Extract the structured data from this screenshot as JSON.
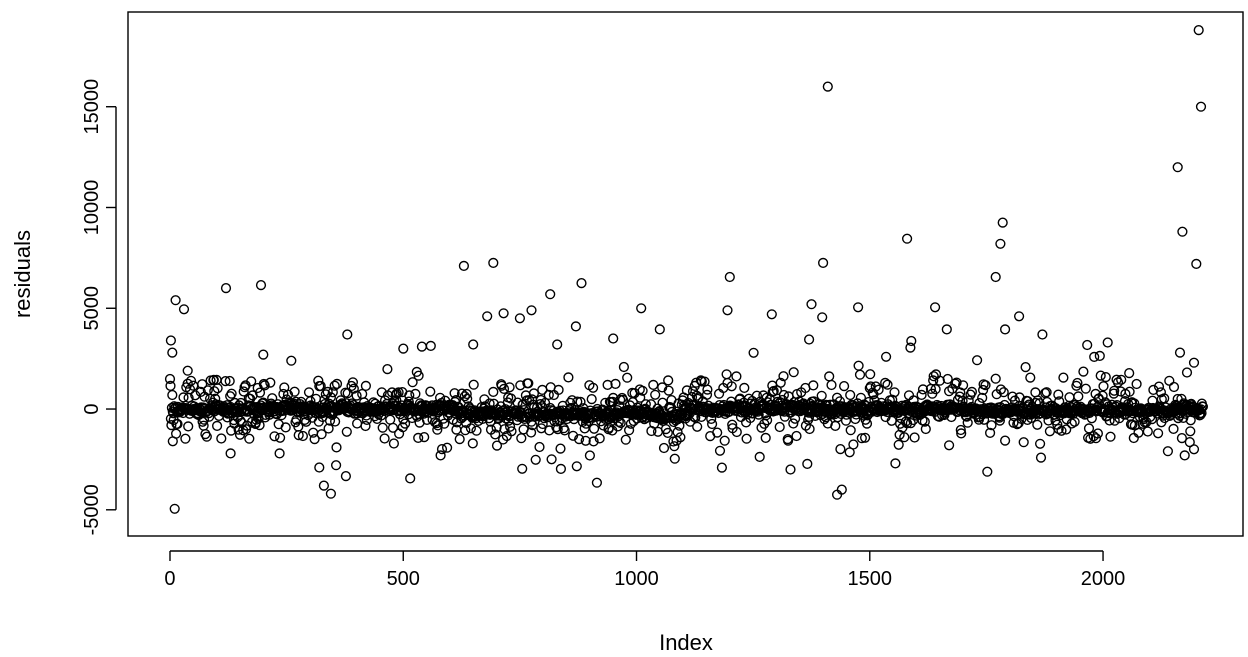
{
  "chart_data": {
    "type": "scatter",
    "title": "",
    "xlabel": "Index",
    "ylabel": "residuals",
    "xlim": [
      -90,
      2300
    ],
    "ylim": [
      -6300,
      19700
    ],
    "x_ticks": [
      0,
      500,
      1000,
      1500,
      2000
    ],
    "y_ticks": [
      -5000,
      0,
      5000,
      10000,
      15000
    ],
    "grid": false,
    "legend": "none",
    "point_count": 2215,
    "point_color": "#000000",
    "outliers": [
      {
        "x": 2,
        "y": 3400
      },
      {
        "x": 5,
        "y": 2800
      },
      {
        "x": 6,
        "y": -1600
      },
      {
        "x": 12,
        "y": 5400
      },
      {
        "x": 10,
        "y": -4950
      },
      {
        "x": 30,
        "y": 4950
      },
      {
        "x": 38,
        "y": 1900
      },
      {
        "x": 45,
        "y": 1400
      },
      {
        "x": 120,
        "y": 6000
      },
      {
        "x": 130,
        "y": -2200
      },
      {
        "x": 195,
        "y": 6150
      },
      {
        "x": 200,
        "y": 2700
      },
      {
        "x": 235,
        "y": -2200
      },
      {
        "x": 260,
        "y": 2400
      },
      {
        "x": 320,
        "y": -2900
      },
      {
        "x": 330,
        "y": -3800
      },
      {
        "x": 345,
        "y": -4200
      },
      {
        "x": 380,
        "y": 3700
      },
      {
        "x": 500,
        "y": 3000
      },
      {
        "x": 540,
        "y": 3100
      },
      {
        "x": 580,
        "y": -2300
      },
      {
        "x": 630,
        "y": 7100
      },
      {
        "x": 650,
        "y": 3200
      },
      {
        "x": 680,
        "y": 4600
      },
      {
        "x": 693,
        "y": 7250
      },
      {
        "x": 715,
        "y": 4750
      },
      {
        "x": 750,
        "y": 4500
      },
      {
        "x": 775,
        "y": 4900
      },
      {
        "x": 815,
        "y": 5700
      },
      {
        "x": 830,
        "y": 3200
      },
      {
        "x": 870,
        "y": 4100
      },
      {
        "x": 882,
        "y": 6250
      },
      {
        "x": 950,
        "y": 3500
      },
      {
        "x": 1010,
        "y": 5000
      },
      {
        "x": 1050,
        "y": 3950
      },
      {
        "x": 1200,
        "y": 6550
      },
      {
        "x": 1195,
        "y": 4900
      },
      {
        "x": 1290,
        "y": 4700
      },
      {
        "x": 1330,
        "y": -3000
      },
      {
        "x": 1370,
        "y": 3450
      },
      {
        "x": 1375,
        "y": 5200
      },
      {
        "x": 1400,
        "y": 7250
      },
      {
        "x": 1398,
        "y": 4550
      },
      {
        "x": 1410,
        "y": 16000
      },
      {
        "x": 1430,
        "y": -4250
      },
      {
        "x": 1440,
        "y": -4000
      },
      {
        "x": 1475,
        "y": 5050
      },
      {
        "x": 1555,
        "y": -2700
      },
      {
        "x": 1580,
        "y": 8450
      },
      {
        "x": 1640,
        "y": 5050
      },
      {
        "x": 1665,
        "y": 3950
      },
      {
        "x": 1670,
        "y": -1800
      },
      {
        "x": 1770,
        "y": 6550
      },
      {
        "x": 1780,
        "y": 8200
      },
      {
        "x": 1785,
        "y": 9250
      },
      {
        "x": 1790,
        "y": 3950
      },
      {
        "x": 1820,
        "y": 4600
      },
      {
        "x": 1870,
        "y": 3700
      },
      {
        "x": 2010,
        "y": 3300
      },
      {
        "x": 2160,
        "y": 12000
      },
      {
        "x": 2170,
        "y": 8800
      },
      {
        "x": 2165,
        "y": 2800
      },
      {
        "x": 2175,
        "y": -2300
      },
      {
        "x": 2195,
        "y": -2000
      },
      {
        "x": 2200,
        "y": 7200
      },
      {
        "x": 2205,
        "y": 18800
      },
      {
        "x": 2210,
        "y": 15000
      }
    ]
  }
}
